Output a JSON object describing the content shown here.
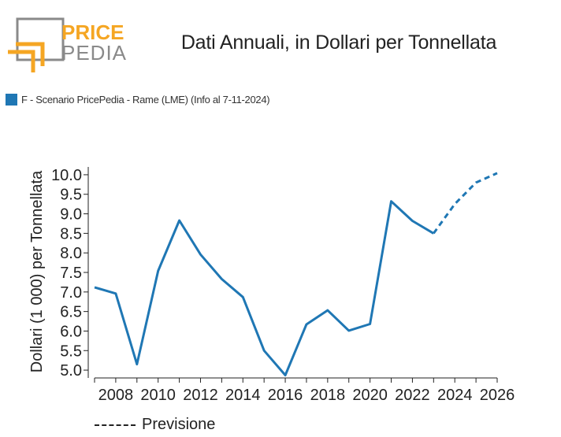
{
  "header": {
    "logo_top": "PRICE",
    "logo_bottom": "PEDIA",
    "title": "Dati Annuali, in Dollari per Tonnellata"
  },
  "colors": {
    "series": "#1f77b4",
    "logo_orange": "#f5a623",
    "logo_gray": "#8a8a8a"
  },
  "legend": {
    "series_label": "F - Scenario PricePedia - Rame (LME) (Info al 7-11-2024)",
    "forecast_label": "Previsione"
  },
  "chart_data": {
    "type": "line",
    "ylabel": "Dollari (1 000) per Tonnellata",
    "xlabel": "",
    "xlim": [
      2007,
      2026
    ],
    "ylim": [
      4.8,
      10.2
    ],
    "x_ticks": [
      2008,
      2010,
      2012,
      2014,
      2016,
      2018,
      2020,
      2022,
      2024,
      2026
    ],
    "y_ticks": [
      5.0,
      5.5,
      6.0,
      6.5,
      7.0,
      7.5,
      8.0,
      8.5,
      9.0,
      9.5,
      10.0
    ],
    "series": [
      {
        "name": "F - Scenario PricePedia - Rame (LME) (Info al 7-11-2024)",
        "x": [
          2007,
          2008,
          2009,
          2010,
          2011,
          2012,
          2013,
          2014,
          2015,
          2016,
          2017,
          2018,
          2019,
          2020,
          2021,
          2022,
          2023
        ],
        "values": [
          7.12,
          6.96,
          5.15,
          7.54,
          8.83,
          7.96,
          7.33,
          6.87,
          5.5,
          4.87,
          6.17,
          6.53,
          6.01,
          6.18,
          9.32,
          8.82,
          8.5
        ],
        "style": "solid"
      },
      {
        "name": "Previsione",
        "x": [
          2023,
          2024,
          2025,
          2026
        ],
        "values": [
          8.5,
          9.25,
          9.8,
          10.04
        ],
        "style": "dashed"
      }
    ]
  }
}
